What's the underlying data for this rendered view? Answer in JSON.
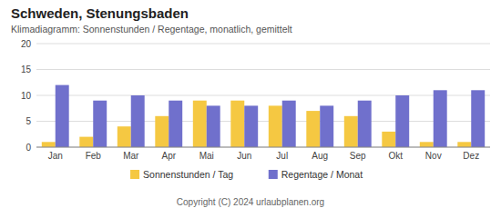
{
  "chart_data": {
    "type": "bar",
    "title": "Schweden, Stenungsbaden",
    "subtitle": "Klimadiagramm: Sonnenstunden / Regentage, monatlich, gemittelt",
    "categories": [
      "Jan",
      "Feb",
      "Mar",
      "Apr",
      "Mai",
      "Jun",
      "Jul",
      "Aug",
      "Sep",
      "Okt",
      "Nov",
      "Dez"
    ],
    "series": [
      {
        "name": "Sonnenstunden / Tag",
        "color": "#F5C842",
        "values": [
          1,
          2,
          4,
          6,
          9,
          9,
          8,
          7,
          6,
          3,
          1,
          1
        ]
      },
      {
        "name": "Regentage / Monat",
        "color": "#7070CC",
        "values": [
          12,
          9,
          10,
          9,
          8,
          8,
          9,
          8,
          9,
          10,
          11,
          11
        ]
      }
    ],
    "ylim": [
      0,
      20
    ],
    "yticks": [
      0,
      5,
      10,
      15,
      20
    ],
    "grid": true,
    "legend": "bottom",
    "annotations": [
      "Copyright (C) 2024 urlaubplanen.org"
    ]
  }
}
